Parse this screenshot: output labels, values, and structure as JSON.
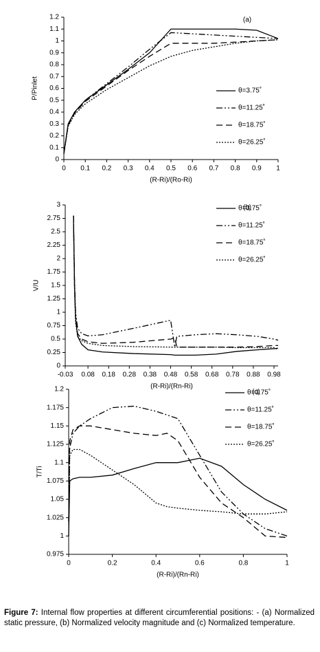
{
  "chart_data": [
    {
      "type": "line",
      "annotation": "(a)",
      "x_label": "(R-Ri)/(Ro-Ri)",
      "y_label": "P/Pinlet",
      "x": [
        0,
        0.02,
        0.05,
        0.1,
        0.2,
        0.3,
        0.4,
        0.5,
        0.6,
        0.7,
        0.8,
        0.9,
        1
      ],
      "xlim": [
        0,
        1
      ],
      "xticks": [
        0,
        0.1,
        0.2,
        0.3,
        0.4,
        0.5,
        0.6,
        0.7,
        0.8,
        0.9,
        1
      ],
      "ylim": [
        0,
        1.2
      ],
      "yticks": [
        0,
        0.1,
        0.2,
        0.3,
        0.4,
        0.5,
        0.6,
        0.7,
        0.8,
        0.9,
        1,
        1.1,
        1.2
      ],
      "legend": "lower right",
      "series": [
        {
          "name": "θ=3.75˚",
          "color": "#000000",
          "dash": "solid",
          "values": [
            0.05,
            0.3,
            0.4,
            0.5,
            0.63,
            0.76,
            0.9,
            1.1,
            1.1,
            1.1,
            1.1,
            1.09,
            1.02
          ]
        },
        {
          "name": "θ=11.25˚",
          "color": "#000000",
          "dash": "dashdotdot",
          "values": [
            0.05,
            0.3,
            0.4,
            0.5,
            0.64,
            0.78,
            0.93,
            1.07,
            1.06,
            1.05,
            1.04,
            1.03,
            1.02
          ]
        },
        {
          "name": "θ=18.75˚",
          "color": "#000000",
          "dash": "dash",
          "values": [
            0.05,
            0.29,
            0.39,
            0.49,
            0.62,
            0.75,
            0.87,
            0.98,
            0.98,
            0.98,
            0.99,
            1.0,
            1.01
          ]
        },
        {
          "name": "θ=26.25˚",
          "color": "#000000",
          "dash": "dot",
          "values": [
            0.05,
            0.28,
            0.38,
            0.47,
            0.59,
            0.69,
            0.79,
            0.87,
            0.92,
            0.95,
            0.98,
            1.0,
            1.01
          ]
        }
      ]
    },
    {
      "type": "line",
      "annotation": "(b)",
      "x_label": "(R-Ri)/(Rn-Ri)",
      "y_label": "V/U",
      "x": [
        0.01,
        0.015,
        0.02,
        0.03,
        0.05,
        0.08,
        0.15,
        0.3,
        0.48,
        0.5,
        0.51,
        0.6,
        0.7,
        0.8,
        0.9,
        0.98,
        1.0
      ],
      "xlim": [
        -0.03,
        1.0
      ],
      "xticks": [
        -0.03,
        0.08,
        0.18,
        0.28,
        0.38,
        0.48,
        0.58,
        0.68,
        0.78,
        0.88,
        0.98
      ],
      "ylim": [
        0,
        3
      ],
      "yticks": [
        0,
        0.25,
        0.5,
        0.75,
        1,
        1.25,
        1.5,
        1.75,
        2,
        2.25,
        2.5,
        2.75,
        3
      ],
      "legend": "upper right",
      "series": [
        {
          "name": "θ=3.75˚",
          "color": "#000000",
          "dash": "solid",
          "values": [
            2.7,
            1.5,
            0.9,
            0.55,
            0.4,
            0.3,
            0.26,
            0.23,
            0.21,
            0.2,
            0.2,
            0.2,
            0.22,
            0.27,
            0.3,
            0.32,
            0.33
          ]
        },
        {
          "name": "θ=11.25˚",
          "color": "#000000",
          "dash": "dashdotdot",
          "values": [
            2.8,
            1.6,
            1.0,
            0.7,
            0.6,
            0.56,
            0.58,
            0.7,
            0.85,
            0.35,
            0.55,
            0.58,
            0.6,
            0.58,
            0.55,
            0.5,
            0.48
          ]
        },
        {
          "name": "θ=18.75˚",
          "color": "#000000",
          "dash": "dash",
          "values": [
            2.8,
            1.5,
            0.9,
            0.6,
            0.5,
            0.45,
            0.42,
            0.44,
            0.5,
            0.52,
            0.35,
            0.35,
            0.35,
            0.35,
            0.36,
            0.38,
            0.38
          ]
        },
        {
          "name": "θ=26.25˚",
          "color": "#000000",
          "dash": "dot",
          "values": [
            2.8,
            1.4,
            0.8,
            0.55,
            0.47,
            0.42,
            0.38,
            0.36,
            0.35,
            0.35,
            0.35,
            0.35,
            0.35,
            0.34,
            0.34,
            0.34,
            0.3
          ]
        }
      ]
    },
    {
      "type": "line",
      "annotation": "(c)",
      "x_label": "(R-Ri)/(Rn-Ri)",
      "y_label": "T/Ti",
      "x": [
        0,
        0.005,
        0.02,
        0.05,
        0.1,
        0.2,
        0.3,
        0.4,
        0.45,
        0.5,
        0.6,
        0.7,
        0.8,
        0.9,
        1.0
      ],
      "xlim": [
        0,
        1
      ],
      "xticks": [
        0,
        0.2,
        0.4,
        0.6,
        0.8,
        1
      ],
      "ylim": [
        0.975,
        1.2
      ],
      "yticks": [
        0.975,
        1,
        1.025,
        1.05,
        1.075,
        1.1,
        1.125,
        1.15,
        1.175,
        1.2
      ],
      "legend": "upper right",
      "series": [
        {
          "name": "θ=3.75˚",
          "color": "#000000",
          "dash": "solid",
          "values": [
            1.0,
            1.075,
            1.078,
            1.08,
            1.08,
            1.083,
            1.092,
            1.1,
            1.1,
            1.1,
            1.106,
            1.095,
            1.07,
            1.05,
            1.035
          ]
        },
        {
          "name": "θ=11.25˚",
          "color": "#000000",
          "dash": "dashdotdot",
          "values": [
            1.02,
            1.12,
            1.14,
            1.15,
            1.16,
            1.175,
            1.177,
            1.17,
            1.165,
            1.16,
            1.11,
            1.06,
            1.03,
            1.01,
            1.0
          ]
        },
        {
          "name": "θ=18.75˚",
          "color": "#000000",
          "dash": "dash",
          "values": [
            1.02,
            1.13,
            1.145,
            1.15,
            1.15,
            1.145,
            1.14,
            1.137,
            1.14,
            1.13,
            1.08,
            1.045,
            1.025,
            1.0,
            0.998
          ]
        },
        {
          "name": "θ=26.25˚",
          "color": "#000000",
          "dash": "dot",
          "values": [
            1.0,
            1.11,
            1.118,
            1.118,
            1.11,
            1.09,
            1.07,
            1.045,
            1.04,
            1.038,
            1.035,
            1.033,
            1.03,
            1.03,
            1.033
          ]
        }
      ]
    }
  ],
  "caption": {
    "label": "Figure 7:",
    "text": "Internal flow properties at different circumferential positions: - (a) Normalized static pressure, (b) Normalized velocity magnitude and (c) Normalized temperature."
  }
}
